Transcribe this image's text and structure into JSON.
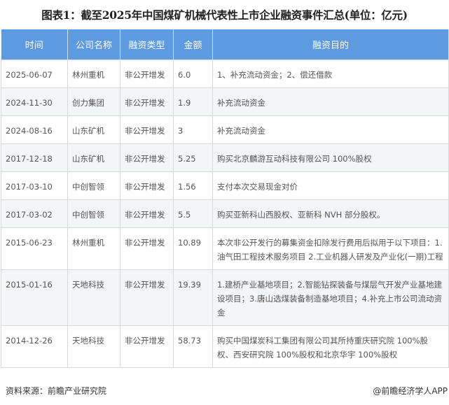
{
  "title": "图表1：截至2025年中国煤矿机械代表性上市企业融资事件汇总(单位：亿元)",
  "columns": [
    "时间",
    "公司名称",
    "融资类型",
    "金额",
    "融资目的"
  ],
  "rows": [
    [
      "2025-06-07",
      "林州重机",
      "非公开增发",
      "6.0",
      "1、补充流动资金；2、偿还借款"
    ],
    [
      "2024-11-30",
      "创力集团",
      "非公开增发",
      "1.9",
      "补充流动资金"
    ],
    [
      "2024-08-16",
      "山东矿机",
      "非公开增发",
      "3",
      "补充流动资金"
    ],
    [
      "2017-12-18",
      "山东矿机",
      "非公开增发",
      "5.25",
      "购买北京麟游互动科技有限公司 100%股权"
    ],
    [
      "2017-03-10",
      "中创智领",
      "非公开增发",
      "1.56",
      "支付本次交易现金对价"
    ],
    [
      "2017-03-02",
      "中创智领",
      "非公开增发",
      "5.5",
      "购买亚新科山西股权、亚新科 NVH 部分股权。"
    ],
    [
      "2015-06-23",
      "林州重机",
      "非公开增发",
      "10.89",
      "本次非公开发行的募集资金扣除发行费用后拟用于以下项目：1.油气田工程技术服务项目 2.工业机器人研发及产业化(一期)工程"
    ],
    [
      "2015-01-16",
      "天地科技",
      "非公开增发",
      "19.39",
      "1.建桥产业基地项目；2.智能钻探装备与煤层气开发产业基地建设项目；3.唐山选煤装备制造基地项目；4.补充上市公司流动资金"
    ],
    [
      "2014-12-26",
      "天地科技",
      "非公开增发",
      "58.73",
      "购买中国煤炭科工集团有限公司其所持重庆研究院 100%股权、西安研究院 100%股权和北京华宇 100%股权"
    ]
  ],
  "footer": {
    "source": "资料来源：前瞻产业研究院",
    "credit": "@前瞻经济学人APP"
  },
  "colors": {
    "header_bg": "#5d9ae0",
    "alt_row_bg": "#f4f5f7"
  }
}
